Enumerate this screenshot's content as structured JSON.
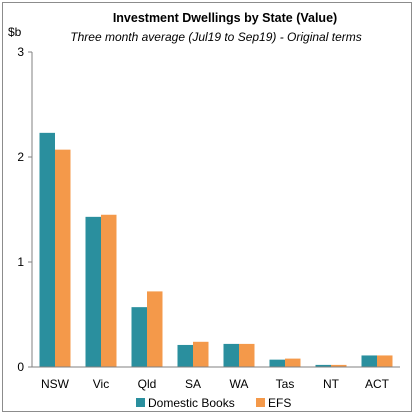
{
  "chart_data": {
    "type": "bar",
    "title": "Investment Dwellings by State (Value)",
    "subtitle": "Three month average (Jul19 to Sep19) - Original terms",
    "ylabel": "$b",
    "xlabel": "",
    "categories": [
      "NSW",
      "Vic",
      "Qld",
      "SA",
      "WA",
      "Tas",
      "NT",
      "ACT"
    ],
    "series": [
      {
        "name": "Domestic Books",
        "color": "#2a8f9e",
        "values": [
          2.23,
          1.43,
          0.57,
          0.21,
          0.22,
          0.07,
          0.02,
          0.11
        ]
      },
      {
        "name": "EFS",
        "color": "#f4994a",
        "values": [
          2.07,
          1.45,
          0.72,
          0.24,
          0.22,
          0.08,
          0.02,
          0.11
        ]
      }
    ],
    "ylim": [
      0,
      3
    ],
    "yticks": [
      "0",
      "1",
      "2",
      "3"
    ],
    "grid": false,
    "legend": "bottom"
  }
}
